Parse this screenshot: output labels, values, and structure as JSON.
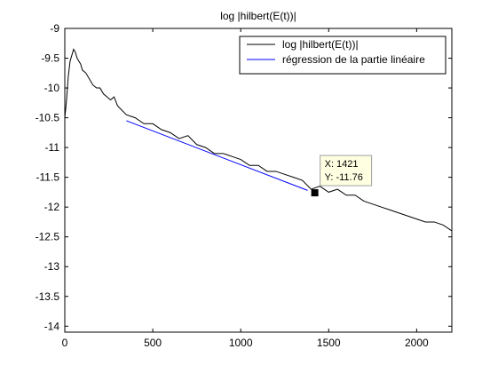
{
  "chart_data": {
    "type": "line",
    "title": "log |hilbert(E(t))|",
    "xlabel": "",
    "ylabel": "",
    "xlim": [
      0,
      2200
    ],
    "ylim": [
      -14.1,
      -9
    ],
    "x_ticks": [
      0,
      500,
      1000,
      1500,
      2000
    ],
    "y_ticks": [
      -9,
      -9.5,
      -10,
      -10.5,
      -11,
      -11.5,
      -12,
      -12.5,
      -13,
      -13.5,
      -14
    ],
    "x_tick_labels": [
      "0",
      "500",
      "1000",
      "1500",
      "2000"
    ],
    "y_tick_labels": [
      "-9",
      "-9.5",
      "-10",
      "-10.5",
      "-11",
      "-11.5",
      "-12",
      "-12.5",
      "-13",
      "-13.5",
      "-14"
    ],
    "grid": false,
    "legend_position": "top-right",
    "series": [
      {
        "name": "log |hilbert(E(t))|",
        "color": "#000000",
        "x": [
          0,
          10,
          20,
          30,
          40,
          50,
          60,
          70,
          80,
          90,
          100,
          120,
          140,
          160,
          180,
          200,
          220,
          240,
          260,
          280,
          300,
          350,
          400,
          450,
          500,
          550,
          600,
          650,
          700,
          750,
          800,
          850,
          900,
          950,
          1000,
          1050,
          1100,
          1150,
          1200,
          1250,
          1300,
          1350,
          1400,
          1450,
          1500,
          1550,
          1600,
          1650,
          1700,
          1750,
          1800,
          1850,
          1900,
          1950,
          2000,
          2050,
          2100,
          2150,
          2200
        ],
        "y": [
          -10.5,
          -10.2,
          -9.8,
          -9.55,
          -9.45,
          -9.35,
          -9.4,
          -9.5,
          -9.55,
          -9.6,
          -9.7,
          -9.75,
          -9.85,
          -9.95,
          -10.0,
          -10.0,
          -10.1,
          -10.15,
          -10.2,
          -10.15,
          -10.3,
          -10.45,
          -10.5,
          -10.6,
          -10.6,
          -10.7,
          -10.75,
          -10.85,
          -10.8,
          -10.95,
          -11.0,
          -11.1,
          -11.1,
          -11.15,
          -11.2,
          -11.3,
          -11.3,
          -11.4,
          -11.4,
          -11.45,
          -11.5,
          -11.55,
          -11.7,
          -11.65,
          -11.75,
          -11.7,
          -11.8,
          -11.8,
          -11.9,
          -11.95,
          -12.0,
          -12.05,
          -12.1,
          -12.15,
          -12.2,
          -12.25,
          -12.25,
          -12.3,
          -12.4
        ]
      },
      {
        "name": "régression de la partie linéaire",
        "color": "#0000ff",
        "x": [
          350,
          1380
        ],
        "y": [
          -10.55,
          -11.72
        ]
      }
    ],
    "annotations": [
      {
        "type": "datatip",
        "x": 1421,
        "y": -11.76,
        "line1": "X: 1421",
        "line2": "Y: -11.76"
      }
    ]
  }
}
